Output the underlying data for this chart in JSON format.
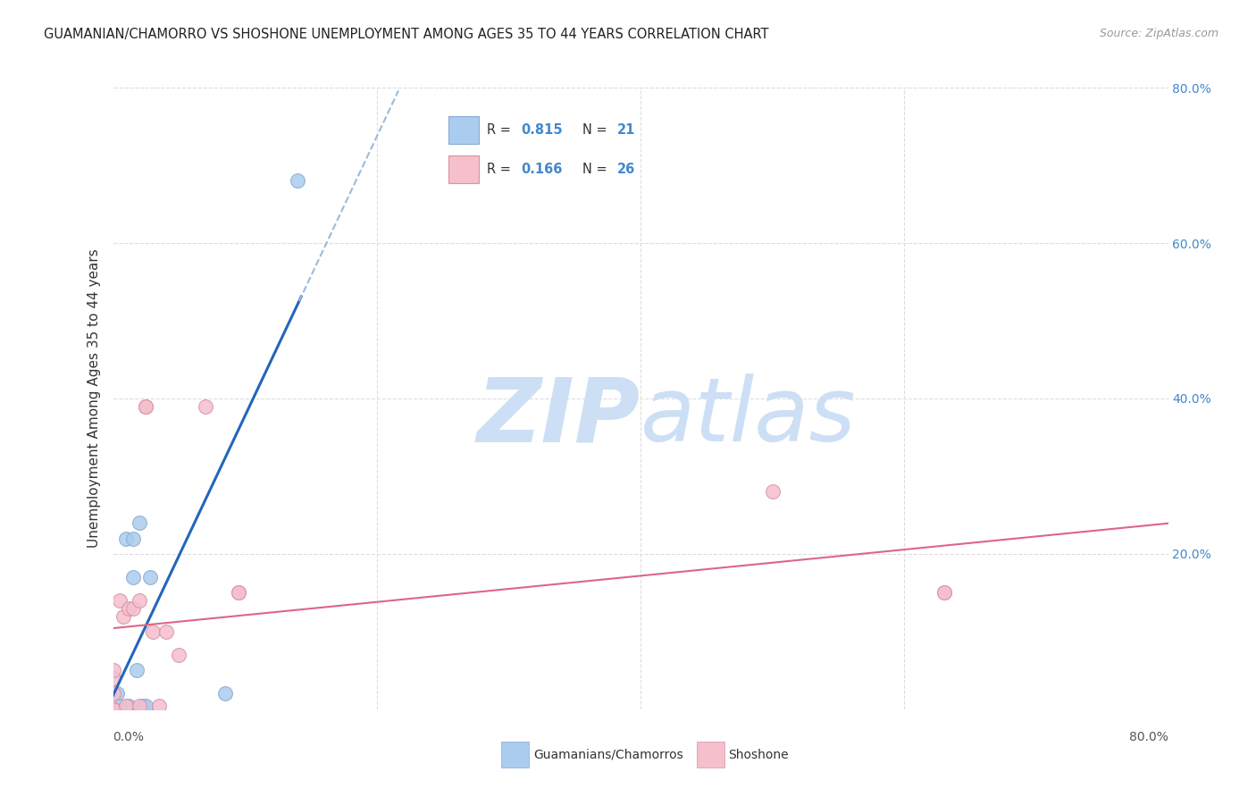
{
  "title": "GUAMANIAN/CHAMORRO VS SHOSHONE UNEMPLOYMENT AMONG AGES 35 TO 44 YEARS CORRELATION CHART",
  "source": "Source: ZipAtlas.com",
  "ylabel": "Unemployment Among Ages 35 to 44 years",
  "xlabel": "",
  "xlim": [
    0,
    0.8
  ],
  "ylim": [
    0,
    0.8
  ],
  "grid_ticks": [
    0.0,
    0.2,
    0.4,
    0.6,
    0.8
  ],
  "background_color": "#ffffff",
  "grid_color": "#dddddd",
  "watermark_zip": "ZIP",
  "watermark_atlas": "atlas",
  "watermark_color": "#ccdff5",
  "guamanian_color": "#aaccee",
  "guamanian_edge": "#88aad0",
  "shoshone_color": "#f5bfcc",
  "shoshone_edge": "#d890a8",
  "guamanian_line_color": "#2266bb",
  "shoshone_line_color": "#dd6688",
  "guamanian_dashed_color": "#99bbdd",
  "right_tick_color": "#4488cc",
  "tick_label_fontsize": 10,
  "bottom_legend_1": "Guamanians/Chamorros",
  "bottom_legend_2": "Shoshone",
  "guamanian_x": [
    0.0,
    0.0,
    0.0,
    0.0,
    0.0,
    0.0,
    0.0,
    0.0,
    0.003,
    0.005,
    0.01,
    0.012,
    0.015,
    0.015,
    0.018,
    0.02,
    0.023,
    0.025,
    0.028,
    0.085,
    0.14
  ],
  "guamanian_y": [
    0.0,
    0.0,
    0.0,
    0.0,
    0.0,
    0.0,
    0.0,
    0.0,
    0.02,
    0.005,
    0.22,
    0.005,
    0.22,
    0.17,
    0.05,
    0.24,
    0.005,
    0.005,
    0.17,
    0.02,
    0.68
  ],
  "shoshone_x": [
    0.0,
    0.0,
    0.0,
    0.0,
    0.0,
    0.0,
    0.0,
    0.005,
    0.008,
    0.01,
    0.012,
    0.015,
    0.02,
    0.02,
    0.025,
    0.025,
    0.03,
    0.035,
    0.04,
    0.05,
    0.07,
    0.095,
    0.095,
    0.5,
    0.63,
    0.63
  ],
  "shoshone_y": [
    0.0,
    0.0,
    0.0,
    0.0,
    0.02,
    0.04,
    0.05,
    0.14,
    0.12,
    0.005,
    0.13,
    0.13,
    0.14,
    0.005,
    0.39,
    0.39,
    0.1,
    0.005,
    0.1,
    0.07,
    0.39,
    0.15,
    0.15,
    0.28,
    0.15,
    0.15
  ]
}
